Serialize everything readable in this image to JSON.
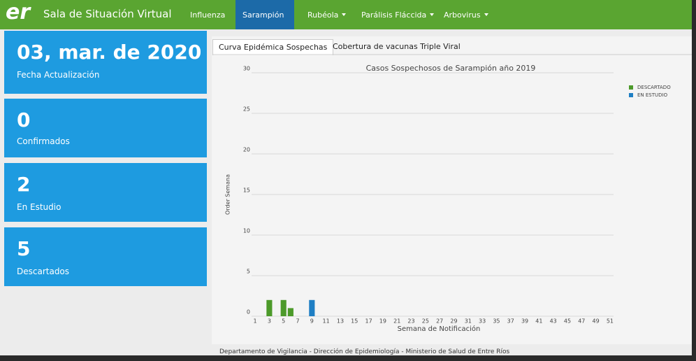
{
  "header": {
    "logo": "er",
    "title": "Sala de Situación Virtual"
  },
  "nav": {
    "items": [
      "Influenza",
      "Sarampión",
      "Rubéola",
      "Parálisis Fláccida",
      "Arbovirus"
    ]
  },
  "cards": [
    {
      "value": "03, mar. de 2020",
      "label": "Fecha Actualización"
    },
    {
      "value": "0",
      "label": "Confirmados"
    },
    {
      "value": "2",
      "label": "En Estudio"
    },
    {
      "value": "5",
      "label": "Descartados"
    }
  ],
  "tabs": [
    "Curva Epidémica Sospechas",
    "Cobertura de vacunas Triple Viral"
  ],
  "chart_data": {
    "type": "bar",
    "stacked": true,
    "title": "Casos Sospechosos de Sarampión año 2019",
    "x_label": "Semana de Notificación",
    "y_label": "Order Semana",
    "categories": [
      "1",
      null,
      "3",
      null,
      "5",
      null,
      "7",
      null,
      "9",
      null,
      "11",
      null,
      "13",
      null,
      "15",
      null,
      "17",
      null,
      "19",
      null,
      "21",
      null,
      "23",
      null,
      "25",
      null,
      "27",
      null,
      "29",
      null,
      "31",
      null,
      "33",
      null,
      "35",
      null,
      "37",
      null,
      "39",
      null,
      "41",
      null,
      "43",
      null,
      "45",
      null,
      "47",
      null,
      "49",
      null,
      "51"
    ],
    "series": [
      {
        "name": "DESCARTADO",
        "color": "#4c9a2a",
        "values": [
          0,
          0,
          2,
          0,
          2,
          1,
          0,
          0,
          0,
          0,
          0,
          0,
          0,
          0,
          0,
          0,
          0,
          0,
          0,
          0,
          0,
          0,
          0,
          0,
          0,
          0,
          0,
          0,
          0,
          0,
          0,
          0,
          0,
          0,
          0,
          0,
          0,
          0,
          0,
          0,
          0,
          0,
          0,
          0,
          0,
          0,
          0,
          0,
          0,
          0,
          0
        ]
      },
      {
        "name": "EN ESTUDIO",
        "color": "#1f7fc4",
        "values": [
          0,
          0,
          0,
          0,
          0,
          0,
          0,
          0,
          2,
          0,
          0,
          0,
          0,
          0,
          0,
          0,
          0,
          0,
          0,
          0,
          0,
          0,
          0,
          0,
          0,
          0,
          0,
          0,
          0,
          0,
          0,
          0,
          0,
          0,
          0,
          0,
          0,
          0,
          0,
          0,
          0,
          0,
          0,
          0,
          0,
          0,
          0,
          0,
          0,
          0,
          0
        ]
      }
    ],
    "ylim": [
      0,
      30
    ],
    "yticks": [
      0,
      5,
      10,
      15,
      20,
      25,
      30
    ],
    "grid": true,
    "legend": "top-right"
  },
  "footer": "Departamento de Vigilancia - Dirección de Epidemiología - Ministerio de Salud de Entre Ríos"
}
